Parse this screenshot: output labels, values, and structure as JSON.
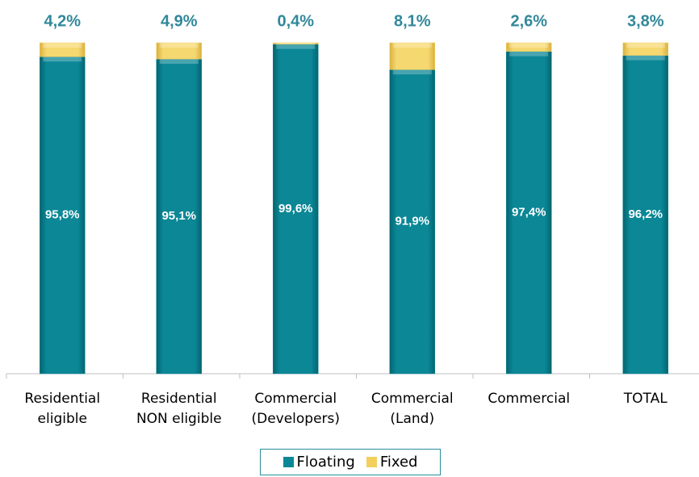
{
  "chart_data": {
    "type": "stacked_bar",
    "categories": [
      "Residential\neligible",
      "Residential\nNON eligible",
      "Commercial\n(Developers)",
      "Commercial\n(Land)",
      "Commercial",
      "TOTAL"
    ],
    "series": [
      {
        "name": "Floating",
        "color": "#0b8796",
        "values": [
          95.8,
          95.1,
          99.6,
          91.9,
          97.4,
          96.2
        ],
        "value_labels": [
          "95,8%",
          "95,1%",
          "99,6%",
          "91,9%",
          "97,4%",
          "96,2%"
        ]
      },
      {
        "name": "Fixed",
        "color": "#f3cf5e",
        "values": [
          4.2,
          4.9,
          0.4,
          8.1,
          2.6,
          3.8
        ],
        "value_labels": [
          "4,2%",
          "4,9%",
          "0,4%",
          "8,1%",
          "2,6%",
          "3,8%"
        ]
      }
    ],
    "ylim": [
      0,
      100
    ]
  }
}
